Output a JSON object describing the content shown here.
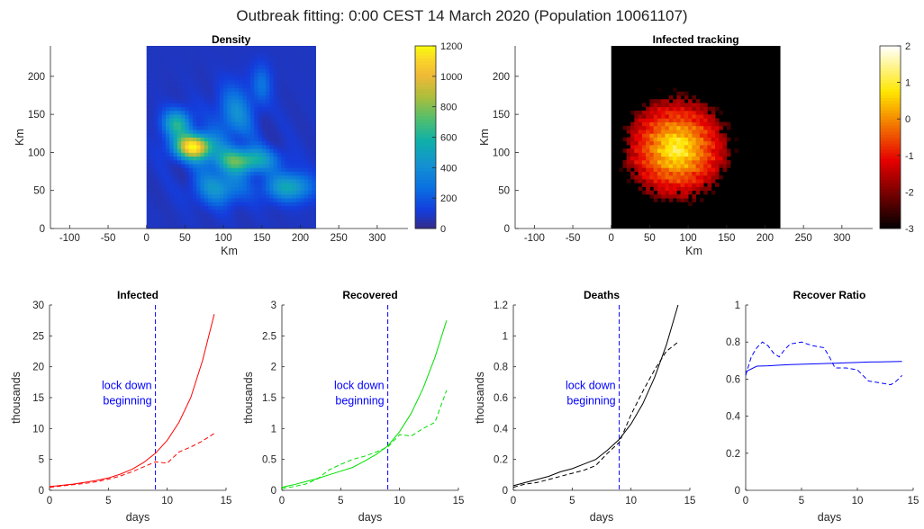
{
  "suptitle": "Outbreak fitting: 0:00 CEST 14 March 2020 (Population 10061107)",
  "colors": {
    "infected": "#ff0000",
    "recovered": "#00e000",
    "deaths": "#000000",
    "ratio": "#0000ff",
    "lockdown": "#0000ff"
  },
  "chart_data": [
    {
      "type": "heatmap",
      "title": "Density",
      "xlabel": "Km",
      "ylabel": "Km",
      "xlim": [
        -125,
        340
      ],
      "ylim": [
        0,
        240
      ],
      "xticks": [
        -100,
        -50,
        0,
        50,
        100,
        150,
        200,
        250,
        300
      ],
      "yticks": [
        0,
        50,
        100,
        150,
        200
      ],
      "image_extent_x": [
        0,
        220
      ],
      "image_extent_y": [
        0,
        240
      ],
      "colormap": "parula",
      "clim": [
        0,
        1200
      ],
      "colorbar_ticks": [
        0,
        200,
        400,
        600,
        800,
        1000,
        1200
      ]
    },
    {
      "type": "heatmap",
      "title": "Infected tracking",
      "xlabel": "Km",
      "ylabel": "Km",
      "xlim": [
        -125,
        340
      ],
      "ylim": [
        0,
        240
      ],
      "xticks": [
        -100,
        -50,
        0,
        50,
        100,
        150,
        200,
        250,
        300
      ],
      "yticks": [
        0,
        50,
        100,
        150,
        200
      ],
      "image_extent_x": [
        0,
        220
      ],
      "image_extent_y": [
        0,
        240
      ],
      "colormap": "hot",
      "clim": [
        -3,
        2
      ],
      "colorbar_ticks": [
        -3,
        -2,
        -1,
        0,
        1,
        2
      ]
    },
    {
      "type": "line",
      "title": "Infected",
      "xlabel": "days",
      "ylabel": "thousands",
      "xlim": [
        0,
        15
      ],
      "ylim": [
        0,
        30
      ],
      "xticks": [
        0,
        5,
        10,
        15
      ],
      "yticks": [
        0,
        5,
        10,
        15,
        20,
        25,
        30
      ],
      "annotation": [
        "lock down",
        "beginning"
      ],
      "vline_x": 9,
      "series": [
        {
          "style": "solid",
          "x": [
            0,
            1,
            2,
            3,
            4,
            5,
            6,
            7,
            8,
            9,
            10,
            11,
            12,
            13,
            14
          ],
          "values": [
            0.6,
            0.8,
            1.0,
            1.3,
            1.6,
            2.0,
            2.6,
            3.4,
            4.5,
            6.0,
            8.1,
            11.0,
            15.0,
            21.0,
            28.5
          ]
        },
        {
          "style": "dashed",
          "x": [
            0,
            1,
            2,
            3,
            4,
            5,
            6,
            7,
            8,
            9,
            10,
            11,
            12,
            13,
            14
          ],
          "values": [
            0.5,
            0.7,
            0.9,
            1.1,
            1.4,
            1.8,
            2.3,
            3.0,
            3.8,
            4.6,
            4.4,
            6.2,
            7.0,
            8.0,
            9.2
          ]
        }
      ]
    },
    {
      "type": "line",
      "title": "Recovered",
      "xlabel": "days",
      "ylabel": "thousands",
      "xlim": [
        0,
        15
      ],
      "ylim": [
        0,
        3
      ],
      "xticks": [
        0,
        5,
        10,
        15
      ],
      "yticks": [
        0,
        0.5,
        1,
        1.5,
        2,
        2.5,
        3
      ],
      "annotation": [
        "lock down",
        "beginning"
      ],
      "vline_x": 9,
      "series": [
        {
          "style": "solid",
          "x": [
            0,
            1,
            2,
            3,
            4,
            5,
            6,
            7,
            8,
            9,
            10,
            11,
            12,
            13,
            14
          ],
          "values": [
            0.05,
            0.09,
            0.14,
            0.19,
            0.25,
            0.31,
            0.37,
            0.47,
            0.58,
            0.72,
            0.95,
            1.25,
            1.65,
            2.15,
            2.75
          ]
        },
        {
          "style": "dashed",
          "x": [
            0,
            1,
            2,
            3,
            4,
            5,
            6,
            7,
            8,
            9,
            10,
            11,
            12,
            13,
            14
          ],
          "values": [
            0.03,
            0.06,
            0.1,
            0.18,
            0.33,
            0.42,
            0.5,
            0.55,
            0.62,
            0.7,
            0.9,
            0.88,
            1.0,
            1.1,
            1.62
          ]
        }
      ]
    },
    {
      "type": "line",
      "title": "Deaths",
      "xlabel": "days",
      "ylabel": "thousands",
      "xlim": [
        0,
        15
      ],
      "ylim": [
        0,
        1.2
      ],
      "xticks": [
        0,
        5,
        10,
        15
      ],
      "yticks": [
        0,
        0.2,
        0.4,
        0.6,
        0.8,
        1,
        1.2
      ],
      "annotation": [
        "lock down",
        "beginning"
      ],
      "vline_x": 9,
      "series": [
        {
          "style": "solid",
          "x": [
            0,
            1,
            2,
            3,
            4,
            5,
            6,
            7,
            8,
            9,
            10,
            11,
            12,
            13,
            14
          ],
          "values": [
            0.03,
            0.05,
            0.07,
            0.09,
            0.12,
            0.14,
            0.17,
            0.2,
            0.26,
            0.33,
            0.43,
            0.56,
            0.73,
            0.94,
            1.2
          ]
        },
        {
          "style": "dashed",
          "x": [
            0,
            1,
            2,
            3,
            4,
            5,
            6,
            7,
            8,
            9,
            10,
            11,
            12,
            13,
            14
          ],
          "values": [
            0.02,
            0.04,
            0.05,
            0.07,
            0.09,
            0.11,
            0.13,
            0.16,
            0.24,
            0.31,
            0.49,
            0.64,
            0.78,
            0.9,
            0.96
          ]
        }
      ]
    },
    {
      "type": "line",
      "title": "Recover Ratio",
      "xlabel": "days",
      "ylabel": "",
      "xlim": [
        0,
        15
      ],
      "ylim": [
        0,
        1
      ],
      "xticks": [
        0,
        5,
        10,
        15
      ],
      "yticks": [
        0,
        0.2,
        0.4,
        0.6,
        0.8,
        1
      ],
      "series": [
        {
          "style": "solid",
          "x": [
            0,
            1,
            2,
            3,
            4,
            5,
            6,
            7,
            8,
            9,
            10,
            11,
            12,
            13,
            14
          ],
          "values": [
            0.64,
            0.67,
            0.672,
            0.675,
            0.678,
            0.68,
            0.682,
            0.684,
            0.686,
            0.688,
            0.69,
            0.692,
            0.693,
            0.694,
            0.695
          ]
        },
        {
          "style": "dashed",
          "x": [
            0,
            0.5,
            1,
            1.5,
            2,
            2.5,
            3,
            3.5,
            4,
            5,
            6,
            7,
            7.5,
            8,
            9,
            10,
            11,
            12,
            13,
            13.5,
            14
          ],
          "values": [
            0.62,
            0.72,
            0.77,
            0.8,
            0.78,
            0.74,
            0.72,
            0.76,
            0.79,
            0.8,
            0.78,
            0.77,
            0.72,
            0.66,
            0.66,
            0.65,
            0.59,
            0.58,
            0.57,
            0.59,
            0.62
          ]
        }
      ]
    }
  ]
}
